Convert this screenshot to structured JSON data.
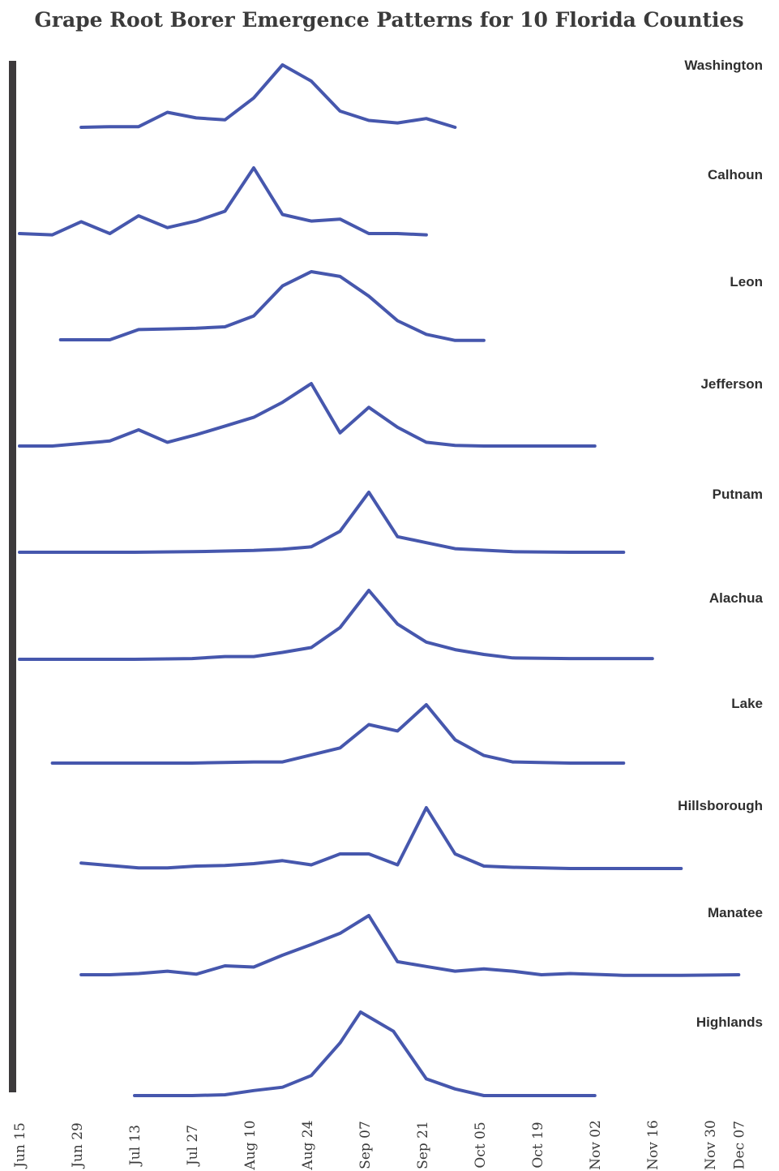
{
  "chart_data": {
    "type": "line",
    "title": "Grape Root Borer Emergence Patterns for 10 Florida Counties",
    "x_ticks": [
      "Jun 15",
      "Jun 29",
      "Jul 13",
      "Jul 27",
      "Aug 10",
      "Aug 24",
      "Sep 07",
      "Sep 21",
      "Oct 05",
      "Oct 19",
      "Nov 02",
      "Nov 16",
      "Nov 30",
      "Dec 07"
    ],
    "x_unit": "date",
    "y_scale": "relative emergence (each county scaled 0-1)",
    "line_color": "#4657ad",
    "axis_color": "#3d3a3c",
    "series": [
      {
        "name": "Washington",
        "x": [
          "Jun 30",
          "Jul 07",
          "Jul 14",
          "Jul 21",
          "Jul 28",
          "Aug 04",
          "Aug 11",
          "Aug 18",
          "Aug 25",
          "Sep 01",
          "Sep 08",
          "Sep 15",
          "Sep 22",
          "Sep 29"
        ],
        "y": [
          0.0,
          0.01,
          0.01,
          0.24,
          0.15,
          0.12,
          0.47,
          1.0,
          0.74,
          0.26,
          0.11,
          0.07,
          0.14,
          0.0
        ]
      },
      {
        "name": "Calhoun",
        "x": [
          "Jun 15",
          "Jun 23",
          "Jun 30",
          "Jul 07",
          "Jul 14",
          "Jul 21",
          "Jul 28",
          "Aug 04",
          "Aug 11",
          "Aug 18",
          "Aug 25",
          "Sep 01",
          "Sep 08",
          "Sep 15",
          "Sep 22"
        ],
        "y": [
          0.0,
          -0.02,
          0.18,
          0.0,
          0.27,
          0.09,
          0.19,
          0.34,
          1.0,
          0.29,
          0.19,
          0.22,
          0.0,
          0.0,
          -0.02
        ]
      },
      {
        "name": "Leon",
        "x": [
          "Jun 25",
          "Jul 07",
          "Jul 14",
          "Jul 21",
          "Jul 28",
          "Aug 04",
          "Aug 11",
          "Aug 18",
          "Aug 25",
          "Sep 01",
          "Sep 08",
          "Sep 15",
          "Sep 22",
          "Sep 29",
          "Oct 06"
        ],
        "y": [
          0.0,
          0.0,
          0.15,
          0.16,
          0.17,
          0.19,
          0.35,
          0.79,
          1.0,
          0.93,
          0.64,
          0.28,
          0.08,
          -0.01,
          -0.01
        ]
      },
      {
        "name": "Jefferson",
        "x": [
          "Jun 15",
          "Jun 23",
          "Jun 30",
          "Jul 07",
          "Jul 14",
          "Jul 21",
          "Jul 28",
          "Aug 04",
          "Aug 11",
          "Aug 18",
          "Aug 25",
          "Sep 01",
          "Sep 08",
          "Sep 15",
          "Sep 22",
          "Sep 29",
          "Oct 06",
          "Nov 02"
        ],
        "y": [
          0.0,
          0.0,
          0.04,
          0.08,
          0.26,
          0.06,
          0.18,
          0.32,
          0.46,
          0.7,
          1.0,
          0.21,
          0.62,
          0.3,
          0.06,
          0.01,
          0.0,
          0.0
        ]
      },
      {
        "name": "Putnam",
        "x": [
          "Jun 15",
          "Jul 13",
          "Jul 27",
          "Aug 04",
          "Aug 11",
          "Aug 18",
          "Aug 25",
          "Sep 01",
          "Sep 08",
          "Sep 15",
          "Sep 22",
          "Sep 29",
          "Oct 13",
          "Oct 27",
          "Nov 09"
        ],
        "y": [
          0.0,
          0.0,
          0.01,
          0.02,
          0.03,
          0.05,
          0.09,
          0.35,
          1.0,
          0.26,
          0.16,
          0.06,
          0.01,
          0.0,
          0.0
        ]
      },
      {
        "name": "Alachua",
        "x": [
          "Jun 15",
          "Jul 13",
          "Jul 27",
          "Aug 04",
          "Aug 11",
          "Aug 18",
          "Aug 25",
          "Sep 01",
          "Sep 08",
          "Sep 15",
          "Sep 22",
          "Sep 29",
          "Oct 06",
          "Oct 13",
          "Oct 27",
          "Nov 16"
        ],
        "y": [
          0.0,
          0.0,
          0.01,
          0.04,
          0.04,
          0.1,
          0.17,
          0.46,
          1.0,
          0.51,
          0.25,
          0.14,
          0.07,
          0.02,
          0.01,
          0.01
        ]
      },
      {
        "name": "Lake",
        "x": [
          "Jun 23",
          "Jul 27",
          "Aug 11",
          "Aug 18",
          "Aug 25",
          "Sep 01",
          "Sep 08",
          "Sep 15",
          "Sep 22",
          "Sep 29",
          "Oct 06",
          "Oct 13",
          "Oct 27",
          "Nov 09"
        ],
        "y": [
          0.0,
          0.0,
          0.02,
          0.02,
          0.14,
          0.26,
          0.66,
          0.55,
          1.0,
          0.4,
          0.13,
          0.02,
          0.0,
          0.0
        ]
      },
      {
        "name": "Hillsborough",
        "x": [
          "Jun 30",
          "Jul 07",
          "Jul 14",
          "Jul 21",
          "Jul 28",
          "Aug 04",
          "Aug 11",
          "Aug 18",
          "Aug 25",
          "Sep 01",
          "Sep 08",
          "Sep 15",
          "Sep 22",
          "Sep 29",
          "Oct 06",
          "Oct 13",
          "Oct 27",
          "Nov 23"
        ],
        "y": [
          0.09,
          0.05,
          0.01,
          0.01,
          0.04,
          0.05,
          0.08,
          0.13,
          0.06,
          0.24,
          0.24,
          0.06,
          1.0,
          0.24,
          0.04,
          0.02,
          0.0,
          0.0
        ]
      },
      {
        "name": "Manatee",
        "x": [
          "Jun 30",
          "Jul 07",
          "Jul 14",
          "Jul 21",
          "Jul 28",
          "Aug 04",
          "Aug 11",
          "Aug 18",
          "Aug 25",
          "Sep 01",
          "Sep 08",
          "Sep 15",
          "Sep 22",
          "Sep 29",
          "Oct 06",
          "Oct 13",
          "Oct 20",
          "Oct 27",
          "Nov 09",
          "Nov 23",
          "Dec 07"
        ],
        "y": [
          0.0,
          0.0,
          0.02,
          0.06,
          0.01,
          0.15,
          0.13,
          0.33,
          0.51,
          0.7,
          1.0,
          0.22,
          0.14,
          0.06,
          0.1,
          0.06,
          0.0,
          0.02,
          -0.01,
          -0.01,
          0.0
        ]
      },
      {
        "name": "Highlands",
        "x": [
          "Jul 13",
          "Jul 20",
          "Jul 27",
          "Aug 04",
          "Aug 11",
          "Aug 18",
          "Aug 25",
          "Sep 01",
          "Sep 06",
          "Sep 14",
          "Sep 22",
          "Sep 29",
          "Oct 06",
          "Oct 20",
          "Nov 02"
        ],
        "y": [
          0.0,
          0.0,
          0.0,
          0.01,
          0.06,
          0.1,
          0.24,
          0.63,
          1.0,
          0.77,
          0.2,
          0.08,
          0.0,
          0.0,
          0.0
        ]
      }
    ]
  }
}
